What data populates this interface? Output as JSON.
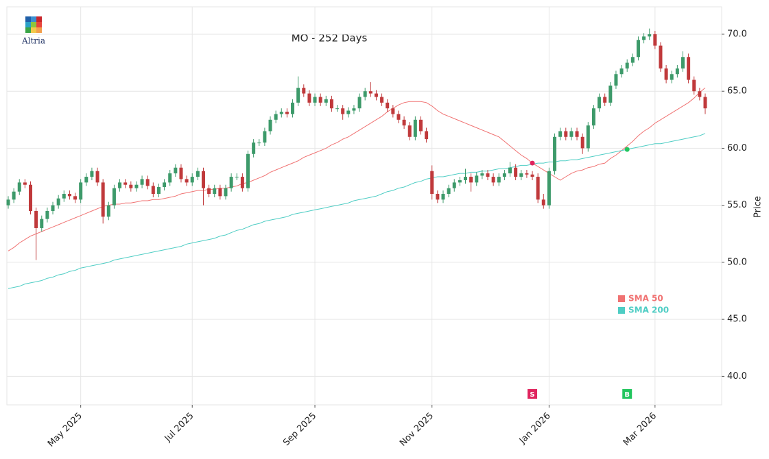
{
  "chart_data": {
    "type": "candlestick",
    "title": "MO - 252 Days",
    "logo": "Altria",
    "y_label": "Price",
    "ylim": [
      37.5,
      72.4
    ],
    "yticks": [
      {
        "value": 40,
        "label": "40.0"
      },
      {
        "value": 45,
        "label": "45.0"
      },
      {
        "value": 50,
        "label": "50.0"
      },
      {
        "value": 55,
        "label": "55.0"
      },
      {
        "value": 60,
        "label": "60.0"
      },
      {
        "value": 65,
        "label": "65.0"
      },
      {
        "value": 70,
        "label": "70.0"
      }
    ],
    "grid": true,
    "legend": "lower right",
    "up_color": "#3d9a6a",
    "down_color": "#c0393b",
    "categories": [
      null,
      null,
      null,
      null,
      null,
      null,
      null,
      null,
      null,
      null,
      null,
      null,
      null,
      "May 2025",
      null,
      null,
      null,
      null,
      null,
      null,
      null,
      null,
      null,
      null,
      null,
      null,
      null,
      null,
      null,
      null,
      null,
      null,
      null,
      "Jul 2025",
      null,
      null,
      null,
      null,
      null,
      null,
      null,
      null,
      null,
      null,
      null,
      null,
      null,
      null,
      null,
      null,
      null,
      null,
      null,
      null,
      null,
      "Sep 2025",
      null,
      null,
      null,
      null,
      null,
      null,
      null,
      null,
      null,
      null,
      null,
      null,
      null,
      null,
      null,
      null,
      null,
      null,
      null,
      null,
      "Nov 2025",
      null,
      null,
      null,
      null,
      null,
      null,
      null,
      null,
      null,
      null,
      null,
      null,
      null,
      null,
      null,
      null,
      null,
      null,
      null,
      null,
      "Jan 2026",
      null,
      null,
      null,
      null,
      null,
      null,
      null,
      null,
      null,
      null,
      null,
      null,
      null,
      null,
      null,
      null,
      null,
      null,
      "Mar 2026",
      null,
      null,
      null,
      null,
      null,
      null,
      null,
      null,
      null
    ],
    "candles": [
      [
        55.0,
        55.8,
        54.7,
        55.5
      ],
      [
        55.5,
        56.5,
        55.2,
        56.2
      ],
      [
        56.2,
        57.3,
        55.9,
        57.0
      ],
      [
        57.0,
        57.3,
        56.5,
        56.8
      ],
      [
        56.8,
        57.1,
        54.2,
        54.5
      ],
      [
        54.5,
        54.8,
        50.2,
        53.0
      ],
      [
        53.0,
        54.1,
        52.7,
        53.8
      ],
      [
        53.8,
        54.8,
        53.5,
        54.5
      ],
      [
        54.5,
        55.3,
        54.2,
        55.0
      ],
      [
        55.0,
        55.9,
        54.7,
        55.6
      ],
      [
        55.6,
        56.3,
        55.3,
        56.0
      ],
      [
        56.0,
        56.3,
        55.5,
        55.8
      ],
      [
        55.8,
        56.1,
        55.2,
        55.5
      ],
      [
        55.5,
        57.3,
        55.2,
        57.0
      ],
      [
        57.0,
        57.8,
        56.7,
        57.5
      ],
      [
        57.5,
        58.3,
        57.2,
        58.0
      ],
      [
        58.0,
        58.3,
        56.7,
        57.0
      ],
      [
        57.0,
        57.3,
        53.4,
        54.0
      ],
      [
        54.0,
        55.3,
        53.7,
        55.0
      ],
      [
        55.0,
        56.8,
        54.7,
        56.5
      ],
      [
        56.5,
        57.3,
        56.2,
        57.0
      ],
      [
        57.0,
        57.3,
        56.5,
        56.8
      ],
      [
        56.8,
        57.1,
        56.2,
        56.5
      ],
      [
        56.5,
        57.1,
        56.2,
        56.8
      ],
      [
        56.8,
        57.6,
        56.5,
        57.3
      ],
      [
        57.3,
        57.6,
        56.4,
        56.7
      ],
      [
        56.7,
        57.0,
        55.7,
        56.0
      ],
      [
        56.0,
        56.9,
        55.7,
        56.6
      ],
      [
        56.6,
        57.3,
        56.3,
        57.0
      ],
      [
        57.0,
        58.1,
        56.7,
        57.8
      ],
      [
        57.8,
        58.6,
        57.5,
        58.3
      ],
      [
        58.3,
        58.6,
        57.0,
        57.3
      ],
      [
        57.3,
        57.6,
        56.7,
        57.0
      ],
      [
        57.0,
        57.8,
        56.7,
        57.5
      ],
      [
        57.5,
        58.3,
        57.2,
        58.0
      ],
      [
        58.0,
        58.3,
        55.0,
        56.5
      ],
      [
        56.5,
        56.8,
        55.7,
        56.0
      ],
      [
        56.0,
        56.8,
        55.7,
        56.5
      ],
      [
        56.5,
        56.8,
        55.5,
        55.8
      ],
      [
        55.8,
        56.8,
        55.5,
        56.5
      ],
      [
        56.5,
        57.8,
        56.2,
        57.5
      ],
      [
        57.5,
        57.8,
        57.2,
        57.5
      ],
      [
        57.5,
        57.8,
        56.2,
        56.5
      ],
      [
        56.5,
        59.8,
        56.2,
        59.5
      ],
      [
        59.5,
        60.8,
        59.2,
        60.5
      ],
      [
        60.5,
        60.8,
        60.2,
        60.5
      ],
      [
        60.5,
        61.8,
        60.2,
        61.5
      ],
      [
        61.5,
        62.8,
        61.2,
        62.5
      ],
      [
        62.5,
        63.3,
        62.2,
        63.0
      ],
      [
        63.0,
        63.5,
        62.7,
        63.2
      ],
      [
        63.2,
        63.5,
        62.7,
        63.0
      ],
      [
        63.0,
        64.3,
        62.7,
        64.0
      ],
      [
        64.0,
        66.3,
        63.7,
        65.3
      ],
      [
        65.3,
        65.6,
        64.5,
        64.8
      ],
      [
        64.8,
        65.1,
        63.7,
        64.0
      ],
      [
        64.0,
        64.8,
        63.7,
        64.5
      ],
      [
        64.5,
        64.8,
        63.7,
        64.0
      ],
      [
        64.0,
        64.6,
        63.7,
        64.3
      ],
      [
        64.3,
        64.6,
        63.2,
        63.5
      ],
      [
        63.5,
        63.8,
        63.2,
        63.5
      ],
      [
        63.5,
        63.8,
        62.5,
        63.0
      ],
      [
        63.0,
        63.6,
        62.7,
        63.3
      ],
      [
        63.3,
        63.8,
        63.0,
        63.5
      ],
      [
        63.5,
        64.8,
        63.2,
        64.5
      ],
      [
        64.5,
        65.3,
        64.2,
        65.0
      ],
      [
        65.0,
        65.8,
        64.5,
        64.8
      ],
      [
        64.8,
        65.1,
        64.2,
        64.5
      ],
      [
        64.5,
        64.8,
        63.7,
        64.0
      ],
      [
        64.0,
        64.3,
        63.2,
        63.5
      ],
      [
        63.5,
        63.8,
        62.7,
        63.0
      ],
      [
        63.0,
        63.3,
        62.2,
        62.5
      ],
      [
        62.5,
        62.8,
        61.7,
        62.0
      ],
      [
        62.0,
        62.3,
        60.7,
        61.0
      ],
      [
        61.0,
        62.8,
        60.7,
        62.5
      ],
      [
        62.5,
        62.8,
        61.2,
        61.5
      ],
      [
        61.5,
        61.8,
        60.5,
        60.8
      ],
      [
        58.0,
        58.5,
        55.5,
        56.0
      ],
      [
        56.0,
        56.3,
        55.2,
        55.5
      ],
      [
        55.5,
        56.3,
        55.2,
        56.0
      ],
      [
        56.0,
        56.8,
        55.7,
        56.5
      ],
      [
        56.5,
        57.3,
        56.2,
        57.0
      ],
      [
        57.0,
        57.5,
        56.7,
        57.2
      ],
      [
        57.2,
        58.2,
        56.9,
        57.5
      ],
      [
        57.5,
        57.8,
        56.2,
        57.0
      ],
      [
        57.0,
        57.9,
        56.7,
        57.6
      ],
      [
        57.6,
        58.1,
        57.3,
        57.8
      ],
      [
        57.8,
        58.1,
        57.2,
        57.5
      ],
      [
        57.5,
        57.8,
        56.7,
        57.0
      ],
      [
        57.0,
        57.8,
        56.7,
        57.5
      ],
      [
        57.5,
        58.1,
        57.2,
        57.8
      ],
      [
        57.8,
        58.8,
        57.5,
        58.3
      ],
      [
        58.3,
        58.6,
        57.2,
        57.5
      ],
      [
        57.5,
        58.1,
        57.2,
        57.8
      ],
      [
        57.8,
        58.1,
        57.4,
        57.7
      ],
      [
        57.7,
        58.0,
        57.2,
        57.5
      ],
      [
        57.5,
        57.8,
        55.2,
        55.5
      ],
      [
        55.5,
        56.0,
        54.7,
        55.0
      ],
      [
        55.0,
        58.3,
        54.7,
        58.0
      ],
      [
        58.0,
        61.3,
        57.7,
        61.0
      ],
      [
        61.0,
        61.8,
        60.7,
        61.5
      ],
      [
        61.5,
        61.8,
        60.7,
        61.0
      ],
      [
        61.0,
        61.8,
        60.7,
        61.5
      ],
      [
        61.5,
        61.8,
        60.7,
        61.0
      ],
      [
        61.0,
        61.3,
        59.5,
        60.0
      ],
      [
        60.0,
        62.3,
        59.7,
        62.0
      ],
      [
        62.0,
        63.8,
        61.7,
        63.5
      ],
      [
        63.5,
        64.8,
        63.2,
        64.5
      ],
      [
        64.5,
        64.8,
        63.7,
        64.0
      ],
      [
        64.0,
        65.8,
        63.7,
        65.5
      ],
      [
        65.5,
        66.8,
        65.2,
        66.5
      ],
      [
        66.5,
        67.3,
        66.2,
        67.0
      ],
      [
        67.0,
        67.8,
        66.7,
        67.5
      ],
      [
        67.5,
        68.3,
        67.2,
        68.0
      ],
      [
        68.0,
        69.8,
        67.7,
        69.5
      ],
      [
        69.5,
        70.1,
        69.2,
        69.8
      ],
      [
        69.8,
        70.5,
        69.5,
        70.0
      ],
      [
        70.0,
        70.3,
        68.7,
        69.0
      ],
      [
        69.0,
        69.3,
        66.7,
        67.0
      ],
      [
        67.0,
        67.3,
        65.7,
        66.0
      ],
      [
        66.0,
        66.8,
        65.7,
        66.5
      ],
      [
        66.5,
        67.3,
        66.2,
        67.0
      ],
      [
        67.0,
        68.5,
        66.7,
        68.0
      ],
      [
        68.0,
        68.3,
        65.7,
        66.0
      ],
      [
        66.0,
        66.3,
        64.7,
        65.0
      ],
      [
        65.0,
        65.3,
        64.2,
        64.5
      ],
      [
        64.5,
        64.8,
        63.0,
        63.5
      ]
    ],
    "series": [
      {
        "name": "SMA 50",
        "color": "#f07272",
        "values": [
          51.0,
          51.3,
          51.7,
          52.0,
          52.3,
          52.5,
          52.7,
          52.9,
          53.1,
          53.3,
          53.5,
          53.7,
          53.9,
          54.1,
          54.3,
          54.5,
          54.7,
          54.9,
          55.0,
          55.1,
          55.1,
          55.2,
          55.2,
          55.3,
          55.4,
          55.4,
          55.5,
          55.5,
          55.6,
          55.7,
          55.8,
          56.0,
          56.1,
          56.2,
          56.3,
          56.3,
          56.4,
          56.4,
          56.5,
          56.5,
          56.6,
          56.7,
          56.9,
          57.0,
          57.2,
          57.4,
          57.6,
          57.9,
          58.1,
          58.3,
          58.5,
          58.7,
          58.9,
          59.2,
          59.4,
          59.6,
          59.8,
          60.0,
          60.3,
          60.5,
          60.8,
          61.0,
          61.3,
          61.6,
          61.9,
          62.2,
          62.5,
          62.8,
          63.2,
          63.5,
          63.8,
          64.0,
          64.1,
          64.1,
          64.1,
          64.0,
          63.7,
          63.3,
          63.0,
          62.8,
          62.6,
          62.4,
          62.2,
          62.0,
          61.8,
          61.6,
          61.4,
          61.2,
          61.0,
          60.6,
          60.2,
          59.8,
          59.4,
          59.1,
          58.7,
          58.4,
          58.1,
          57.8,
          57.5,
          57.2,
          57.5,
          57.8,
          58.0,
          58.1,
          58.3,
          58.4,
          58.6,
          58.7,
          59.1,
          59.4,
          59.8,
          60.2,
          60.6,
          61.1,
          61.5,
          61.8,
          62.2,
          62.5,
          62.8,
          63.1,
          63.4,
          63.7,
          64.0,
          64.4,
          64.9,
          65.3
        ]
      },
      {
        "name": "SMA 200",
        "color": "#4ecdc4",
        "values": [
          47.7,
          47.8,
          47.9,
          48.1,
          48.2,
          48.3,
          48.4,
          48.6,
          48.7,
          48.9,
          49.0,
          49.2,
          49.3,
          49.5,
          49.6,
          49.7,
          49.8,
          49.9,
          50.0,
          50.2,
          50.3,
          50.4,
          50.5,
          50.6,
          50.7,
          50.8,
          50.9,
          51.0,
          51.1,
          51.2,
          51.3,
          51.4,
          51.6,
          51.7,
          51.8,
          51.9,
          52.0,
          52.1,
          52.3,
          52.4,
          52.6,
          52.8,
          52.9,
          53.1,
          53.3,
          53.4,
          53.6,
          53.7,
          53.8,
          53.9,
          54.0,
          54.2,
          54.3,
          54.4,
          54.5,
          54.6,
          54.7,
          54.8,
          54.9,
          55.0,
          55.1,
          55.2,
          55.4,
          55.5,
          55.6,
          55.7,
          55.8,
          56.0,
          56.2,
          56.3,
          56.5,
          56.6,
          56.8,
          57.0,
          57.1,
          57.3,
          57.4,
          57.5,
          57.5,
          57.6,
          57.7,
          57.8,
          57.8,
          57.9,
          57.9,
          58.0,
          58.0,
          58.1,
          58.2,
          58.2,
          58.3,
          58.4,
          58.5,
          58.5,
          58.6,
          58.7,
          58.7,
          58.8,
          58.8,
          58.9,
          58.9,
          59.0,
          59.0,
          59.1,
          59.2,
          59.3,
          59.4,
          59.5,
          59.6,
          59.7,
          59.8,
          59.9,
          60.0,
          60.1,
          60.2,
          60.3,
          60.4,
          60.4,
          60.5,
          60.6,
          60.7,
          60.8,
          60.9,
          61.0,
          61.1,
          61.3
        ]
      }
    ],
    "signals": [
      {
        "label": "S",
        "x": 94,
        "value": 58.7,
        "color": "#e0245e"
      },
      {
        "label": "B",
        "x": 111,
        "value": 59.9,
        "color": "#22c55e"
      }
    ]
  }
}
